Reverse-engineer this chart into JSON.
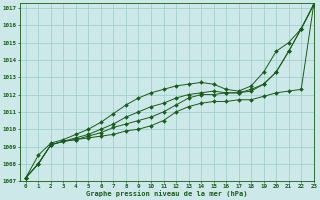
{
  "title": "Graphe pression niveau de la mer (hPa)",
  "bg_color": "#cce8e8",
  "grid_color": "#99cccc",
  "line_color": "#1a5c1a",
  "marker_color": "#1a5c1a",
  "xlim": [
    -0.5,
    23
  ],
  "ylim": [
    1007,
    1017.3
  ],
  "xticks": [
    0,
    1,
    2,
    3,
    4,
    5,
    6,
    7,
    8,
    9,
    10,
    11,
    12,
    13,
    14,
    15,
    16,
    17,
    18,
    19,
    20,
    21,
    22,
    23
  ],
  "yticks": [
    1007,
    1008,
    1009,
    1010,
    1011,
    1012,
    1013,
    1014,
    1015,
    1016,
    1017
  ],
  "series": [
    [
      1007.2,
      1008.0,
      1009.1,
      1009.3,
      1009.4,
      1009.5,
      1009.6,
      1009.7,
      1009.9,
      1010.0,
      1010.2,
      1010.5,
      1011.0,
      1011.3,
      1011.5,
      1011.6,
      1011.6,
      1011.7,
      1011.7,
      1011.9,
      1012.1,
      1012.2,
      1012.3,
      1017.2
    ],
    [
      1007.2,
      1008.0,
      1009.1,
      1009.3,
      1009.4,
      1009.6,
      1009.8,
      1010.1,
      1010.3,
      1010.5,
      1010.7,
      1011.0,
      1011.4,
      1011.8,
      1012.0,
      1012.0,
      1012.1,
      1012.1,
      1012.2,
      1012.6,
      1013.3,
      1014.5,
      1015.8,
      1017.2
    ],
    [
      1007.2,
      1008.0,
      1009.1,
      1009.3,
      1009.5,
      1009.7,
      1010.0,
      1010.3,
      1010.7,
      1011.0,
      1011.3,
      1011.5,
      1011.8,
      1012.0,
      1012.1,
      1012.2,
      1012.1,
      1012.1,
      1012.3,
      1012.6,
      1013.3,
      1014.5,
      1015.8,
      1017.2
    ],
    [
      1007.2,
      1008.5,
      1009.2,
      1009.4,
      1009.7,
      1010.0,
      1010.4,
      1010.9,
      1011.4,
      1011.8,
      1012.1,
      1012.3,
      1012.5,
      1012.6,
      1012.7,
      1012.6,
      1012.3,
      1012.2,
      1012.5,
      1013.3,
      1014.5,
      1015.0,
      1015.8,
      1017.2
    ]
  ]
}
